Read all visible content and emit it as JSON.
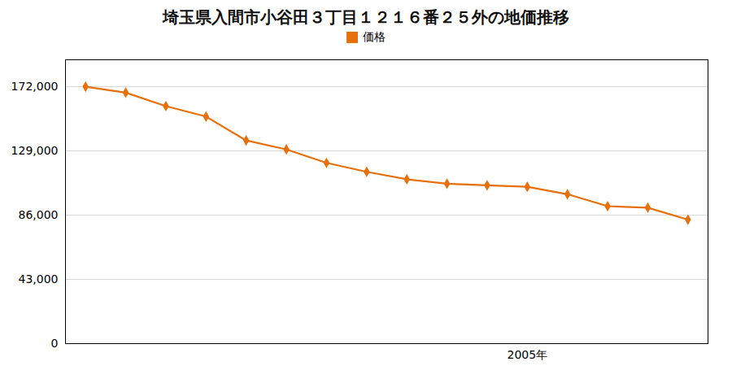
{
  "chart_data": {
    "type": "line",
    "title": "埼玉県入間市小谷田３丁目１２１６番２５外の地価推移",
    "x": [
      1994,
      1995,
      1996,
      1997,
      1998,
      1999,
      2000,
      2001,
      2002,
      2003,
      2004,
      2005,
      2006,
      2007,
      2008,
      2009
    ],
    "series": [
      {
        "name": "価格",
        "color": "#E8700A",
        "marker": "diamond",
        "values": [
          172000,
          168000,
          159000,
          152000,
          136000,
          130000,
          121000,
          115000,
          110000,
          107000,
          106000,
          105000,
          100000,
          92000,
          91000,
          83000
        ]
      }
    ],
    "xlim": [
      1993.5,
      2009.5
    ],
    "xticks": [
      {
        "value": 2005,
        "label": "2005年"
      }
    ],
    "ylim": [
      0,
      190000
    ],
    "yticks": [
      0,
      {
        "value": 43000,
        "label": "43,000"
      },
      {
        "value": 86000,
        "label": "86,000"
      },
      {
        "value": 129000,
        "label": "129,000"
      },
      {
        "value": 172000,
        "label": "172,000"
      }
    ],
    "grid": true,
    "legend": "top"
  }
}
